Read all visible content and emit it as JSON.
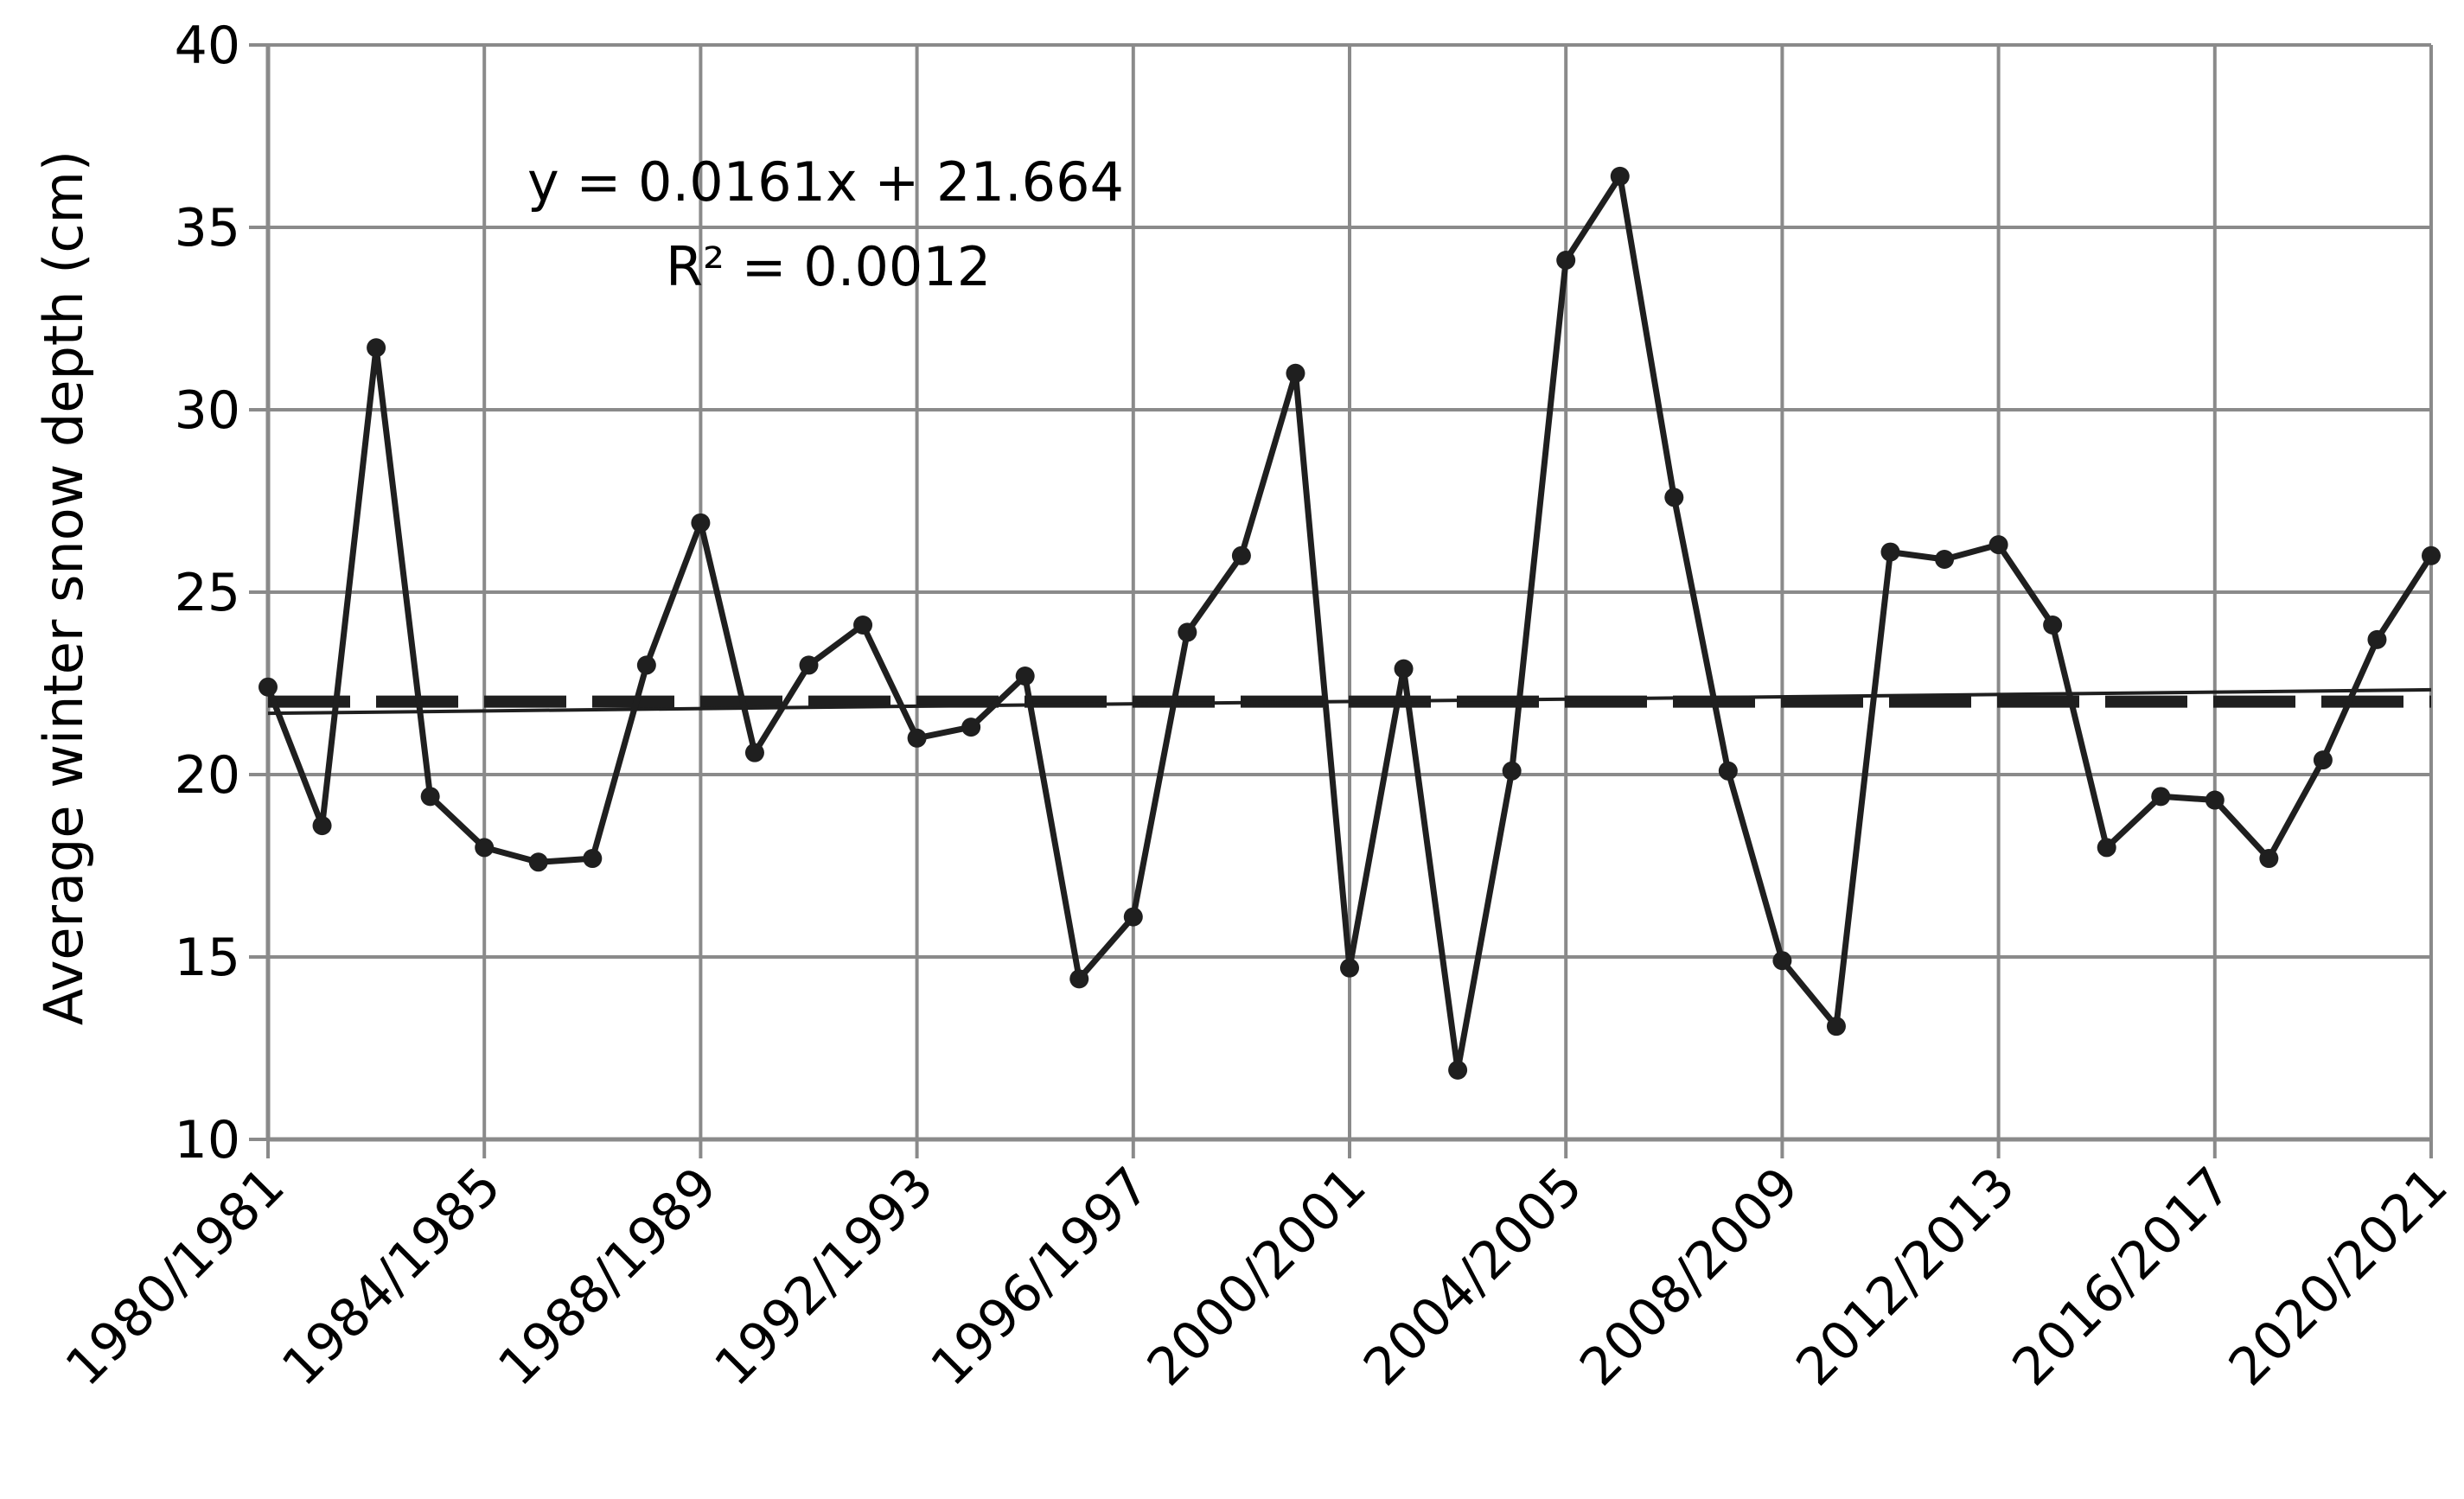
{
  "chart_data": {
    "type": "line",
    "title": "",
    "xlabel": "",
    "ylabel": "Average winter snow depth (cm)",
    "ylim": [
      10,
      40
    ],
    "yticks": [
      10,
      15,
      20,
      25,
      30,
      35,
      40
    ],
    "grid": true,
    "x_tick_labels": [
      "1980/1981",
      "1984/1985",
      "1988/1989",
      "1992/1993",
      "1996/1997",
      "2000/2001",
      "2004/2005",
      "2008/2009",
      "2012/2013",
      "2016/2017",
      "2020/2021"
    ],
    "x": [
      "1980/1981",
      "1981/1982",
      "1982/1983",
      "1983/1984",
      "1984/1985",
      "1985/1986",
      "1986/1987",
      "1987/1988",
      "1988/1989",
      "1989/1990",
      "1990/1991",
      "1991/1992",
      "1992/1993",
      "1993/1994",
      "1994/1995",
      "1995/1996",
      "1996/1997",
      "1997/1998",
      "1998/1999",
      "1999/2000",
      "2000/2001",
      "2001/2002",
      "2002/2003",
      "2003/2004",
      "2004/2005",
      "2005/2006",
      "2006/2007",
      "2007/2008",
      "2008/2009",
      "2009/2010",
      "2010/2011",
      "2011/2012",
      "2012/2013",
      "2013/2014",
      "2014/2015",
      "2015/2016",
      "2016/2017",
      "2017/2018",
      "2018/2019",
      "2019/2020",
      "2020/2021"
    ],
    "series": [
      {
        "values": [
          22.4,
          18.6,
          31.7,
          19.4,
          18.0,
          17.6,
          17.7,
          23.0,
          26.9,
          20.6,
          23.0,
          24.1,
          21.0,
          21.3,
          22.7,
          14.4,
          16.1,
          23.9,
          26.0,
          31.0,
          14.7,
          22.9,
          11.9,
          20.1,
          34.1,
          36.4,
          27.6,
          20.1,
          14.9,
          13.1,
          26.1,
          25.9,
          26.3,
          24.1,
          18.0,
          19.4,
          19.3,
          17.7,
          20.4,
          23.7,
          26.0
        ],
        "color": "#1f1f1f",
        "style": "line-with-markers"
      }
    ],
    "mean_line": {
      "value": 22.0,
      "style": "dashed"
    },
    "trend_line": {
      "slope": 0.0161,
      "intercept": 21.664,
      "style": "solid-thin"
    },
    "annotations": {
      "equation": "y = 0.0161x + 21.664",
      "r_squared": "R² = 0.0012"
    }
  }
}
